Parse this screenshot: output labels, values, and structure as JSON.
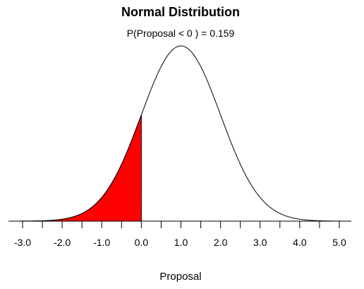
{
  "chart_data": {
    "type": "area",
    "title": "Normal Distribution",
    "subtitle": "P(Proposal < 0 ) = 0.159",
    "xlabel": "Proposal",
    "ylabel": "",
    "distribution": {
      "mean": 1.0,
      "sd": 1.0
    },
    "xlim": [
      -3.2,
      5.3
    ],
    "shaded_region": {
      "from": -3.2,
      "to": 0.0,
      "probability": 0.159,
      "color": "#ff0000"
    },
    "curve_color": "#000000",
    "major_ticks": [
      -3.0,
      -2.0,
      -1.0,
      0.0,
      1.0,
      2.0,
      3.0,
      4.0,
      5.0
    ],
    "minor_ticks": [
      -2.5,
      -1.5,
      -0.5,
      0.5,
      1.5,
      2.5,
      3.5,
      4.5
    ],
    "tick_labels": [
      "-3.0",
      "-2.0",
      "-1.0",
      "0.0",
      "1.0",
      "2.0",
      "3.0",
      "4.0",
      "5.0"
    ],
    "grid": false,
    "legend": "none"
  }
}
